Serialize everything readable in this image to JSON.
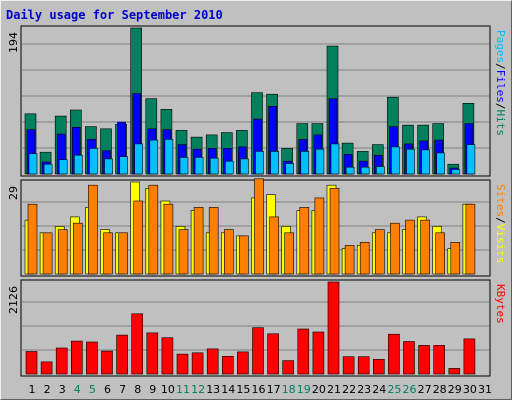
{
  "title": "Daily usage for September 2010",
  "colors": {
    "hits": "#00805c",
    "files": "#0000ff",
    "pages": "#00c0ff",
    "visits": "#ffff00",
    "sites": "#ff8000",
    "kbytes": "#ff0000",
    "weekday_label": "#000000",
    "weekend_label": "#00805c",
    "background": "#c0c0c0",
    "title": "#0000cc"
  },
  "chart_data": [
    {
      "type": "bar",
      "panel": "hits-files-pages",
      "ymax_label": "194",
      "ylim": [
        0,
        194
      ],
      "legend": [
        {
          "text": "Hits",
          "color": "#00805c"
        },
        {
          "text": "Files",
          "color": "#0000ff"
        },
        {
          "text": "Pages",
          "color": "#00c0ff"
        }
      ],
      "categories": [
        "1",
        "2",
        "3",
        "4",
        "5",
        "6",
        "7",
        "8",
        "9",
        "10",
        "11",
        "12",
        "13",
        "14",
        "15",
        "16",
        "17",
        "18",
        "19",
        "20",
        "21",
        "22",
        "23",
        "24",
        "25",
        "26",
        "27",
        "28",
        "29",
        "30",
        "31"
      ],
      "series": [
        {
          "name": "Hits",
          "values": [
            80,
            29,
            77,
            85,
            63,
            60,
            66,
            194,
            100,
            86,
            58,
            49,
            52,
            55,
            58,
            108,
            106,
            34,
            67,
            67,
            170,
            41,
            30,
            39,
            102,
            65,
            65,
            67,
            13,
            94,
            0
          ]
        },
        {
          "name": "Files",
          "values": [
            59,
            16,
            53,
            62,
            46,
            31,
            69,
            107,
            60,
            59,
            39,
            33,
            34,
            34,
            36,
            73,
            90,
            17,
            46,
            52,
            100,
            26,
            17,
            25,
            63,
            40,
            44,
            45,
            8,
            67,
            0
          ]
        },
        {
          "name": "Pages",
          "values": [
            27,
            13,
            19,
            25,
            34,
            20,
            23,
            40,
            45,
            46,
            22,
            22,
            21,
            17,
            20,
            30,
            30,
            14,
            30,
            33,
            40,
            9,
            9,
            10,
            36,
            33,
            32,
            28,
            6,
            39,
            0
          ]
        }
      ]
    },
    {
      "type": "bar",
      "panel": "visits-sites",
      "ymax_label": "29",
      "ylim": [
        0,
        29
      ],
      "legend": [
        {
          "text": "Visits",
          "color": "#ffff00"
        },
        {
          "text": "Sites",
          "color": "#ff8000"
        }
      ],
      "categories": [
        "1",
        "2",
        "3",
        "4",
        "5",
        "6",
        "7",
        "8",
        "9",
        "10",
        "11",
        "12",
        "13",
        "14",
        "15",
        "16",
        "17",
        "18",
        "19",
        "20",
        "21",
        "22",
        "23",
        "24",
        "25",
        "26",
        "27",
        "28",
        "29",
        "30",
        "31"
      ],
      "series": [
        {
          "name": "Visits",
          "values": [
            17,
            13,
            15,
            18,
            21,
            14,
            13,
            29,
            27,
            23,
            15,
            20,
            13,
            13,
            12,
            24,
            25,
            15,
            20,
            20,
            28,
            8,
            9,
            13,
            13,
            14,
            18,
            15,
            8,
            22,
            0
          ]
        },
        {
          "name": "Sites",
          "values": [
            22,
            13,
            14,
            16,
            28,
            13,
            13,
            23,
            28,
            22,
            14,
            21,
            21,
            14,
            12,
            30,
            18,
            13,
            21,
            24,
            27,
            9,
            10,
            14,
            16,
            17,
            17,
            13,
            10,
            22,
            0
          ]
        }
      ]
    },
    {
      "type": "bar",
      "panel": "kbytes",
      "ymax_label": "2126",
      "ylim": [
        0,
        2126
      ],
      "legend": [
        {
          "text": "KBytes",
          "color": "#ff0000"
        }
      ],
      "categories": [
        "1",
        "2",
        "3",
        "4",
        "5",
        "6",
        "7",
        "8",
        "9",
        "10",
        "11",
        "12",
        "13",
        "14",
        "15",
        "16",
        "17",
        "18",
        "19",
        "20",
        "21",
        "22",
        "23",
        "24",
        "25",
        "26",
        "27",
        "28",
        "29",
        "30",
        "31"
      ],
      "series": [
        {
          "name": "KBytes",
          "values": [
            520,
            280,
            600,
            760,
            740,
            530,
            900,
            1390,
            950,
            840,
            460,
            490,
            580,
            410,
            510,
            1070,
            930,
            310,
            1040,
            970,
            2126,
            400,
            400,
            340,
            920,
            750,
            660,
            660,
            130,
            810,
            0
          ]
        }
      ]
    }
  ]
}
